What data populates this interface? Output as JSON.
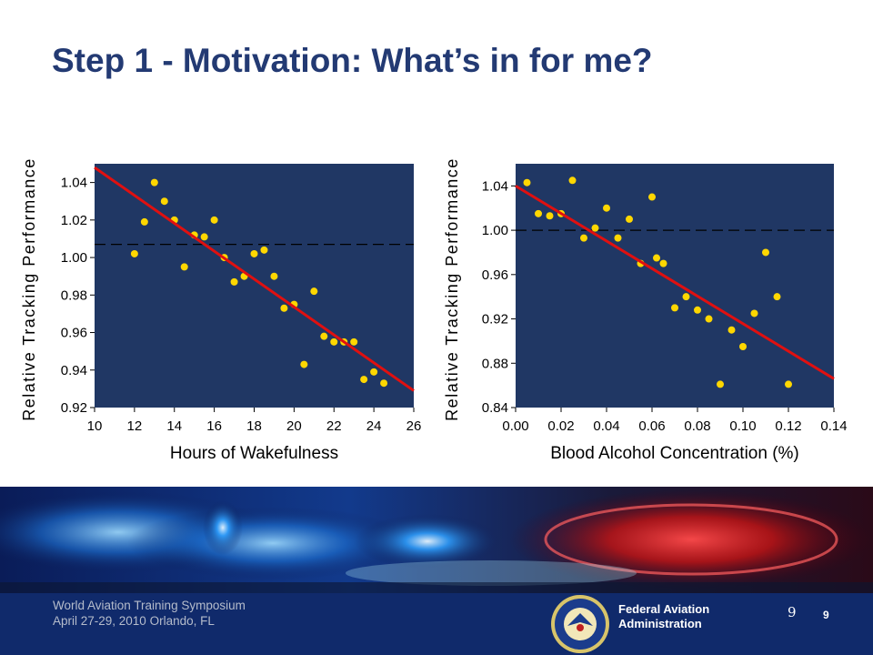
{
  "slide": {
    "title": "Step 1 - Motivation:  What’s in for me?",
    "footer_line1": "World Aviation Training Symposium",
    "footer_line2": "April 27-29, 2010 Orlando, FL",
    "org_line1": "Federal Aviation",
    "org_line2": "Administration",
    "page_number": "9",
    "page_number_small": "9"
  },
  "colors": {
    "title": "#233a73",
    "plot_bg": "#203764",
    "points": "#ffd700",
    "fit_line": "#e01010",
    "footer_bg": "#102a6b"
  },
  "chart_data": [
    {
      "type": "scatter",
      "xlabel": "Hours of Wakefulness",
      "ylabel": "Relative Tracking Performance",
      "xlim": [
        10,
        26
      ],
      "ylim": [
        0.92,
        1.05
      ],
      "xticks": [
        "10",
        "12",
        "14",
        "16",
        "18",
        "20",
        "22",
        "24",
        "26"
      ],
      "yticks": [
        "0.92",
        "0.94",
        "0.96",
        "0.98",
        "1.00",
        "1.02",
        "1.04"
      ],
      "reference_y": 1.007,
      "fit": [
        [
          10,
          1.048
        ],
        [
          26,
          0.929
        ]
      ],
      "points": [
        [
          12.0,
          1.002
        ],
        [
          12.5,
          1.019
        ],
        [
          13.0,
          1.04
        ],
        [
          13.5,
          1.03
        ],
        [
          14.0,
          1.02
        ],
        [
          14.5,
          0.995
        ],
        [
          15.0,
          1.012
        ],
        [
          15.5,
          1.011
        ],
        [
          16.0,
          1.02
        ],
        [
          16.5,
          1.0
        ],
        [
          17.0,
          0.987
        ],
        [
          17.5,
          0.99
        ],
        [
          18.0,
          1.002
        ],
        [
          18.5,
          1.004
        ],
        [
          19.0,
          0.99
        ],
        [
          19.5,
          0.973
        ],
        [
          20.0,
          0.975
        ],
        [
          20.5,
          0.943
        ],
        [
          21.0,
          0.982
        ],
        [
          21.5,
          0.958
        ],
        [
          22.0,
          0.955
        ],
        [
          22.5,
          0.955
        ],
        [
          23.0,
          0.955
        ],
        [
          23.5,
          0.935
        ],
        [
          24.0,
          0.939
        ],
        [
          24.5,
          0.933
        ]
      ]
    },
    {
      "type": "scatter",
      "xlabel": "Blood Alcohol Concentration (%)",
      "ylabel": "Relative Tracking Performance",
      "xlim": [
        0.0,
        0.14
      ],
      "ylim": [
        0.84,
        1.06
      ],
      "xticks": [
        "0.00",
        "0.02",
        "0.04",
        "0.06",
        "0.08",
        "0.10",
        "0.12",
        "0.14"
      ],
      "yticks": [
        "0.84",
        "0.88",
        "0.92",
        "0.96",
        "1.00",
        "1.04"
      ],
      "reference_y": 1.0,
      "fit": [
        [
          0.0,
          1.04
        ],
        [
          0.14,
          0.866
        ]
      ],
      "points": [
        [
          0.005,
          1.043
        ],
        [
          0.01,
          1.015
        ],
        [
          0.015,
          1.013
        ],
        [
          0.02,
          1.015
        ],
        [
          0.025,
          1.045
        ],
        [
          0.03,
          0.993
        ],
        [
          0.035,
          1.002
        ],
        [
          0.04,
          1.02
        ],
        [
          0.045,
          0.993
        ],
        [
          0.05,
          1.01
        ],
        [
          0.055,
          0.97
        ],
        [
          0.06,
          1.03
        ],
        [
          0.062,
          0.975
        ],
        [
          0.065,
          0.97
        ],
        [
          0.07,
          0.93
        ],
        [
          0.075,
          0.94
        ],
        [
          0.08,
          0.928
        ],
        [
          0.085,
          0.92
        ],
        [
          0.09,
          0.861
        ],
        [
          0.095,
          0.91
        ],
        [
          0.1,
          0.895
        ],
        [
          0.105,
          0.925
        ],
        [
          0.11,
          0.98
        ],
        [
          0.115,
          0.94
        ],
        [
          0.12,
          0.861
        ]
      ]
    }
  ]
}
